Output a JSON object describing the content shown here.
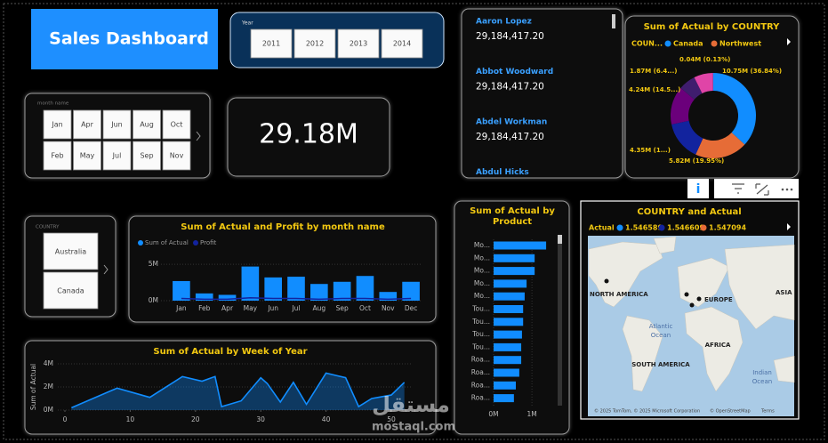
{
  "header": {
    "title": "Sales Dashboard"
  },
  "year_slicer": {
    "label": "Year",
    "options": [
      "2011",
      "2012",
      "2013",
      "2014"
    ]
  },
  "month_slicer": {
    "label": "month name",
    "options": [
      "Jan",
      "Apr",
      "Jun",
      "Aug",
      "Oct",
      "Feb",
      "May",
      "Jul",
      "Sep",
      "Nov"
    ]
  },
  "card": {
    "value": "29.18M"
  },
  "name_list": {
    "items": [
      {
        "name": "Aaron Lopez",
        "value": "29,184,417.20"
      },
      {
        "name": "Abbot Woodward",
        "value": "29,184,417.20"
      },
      {
        "name": "Abdel Workman",
        "value": "29,184,417.20"
      },
      {
        "name": "Abdul Hicks"
      }
    ]
  },
  "country_slicer": {
    "label": "COUNTRY",
    "options": [
      "Australia",
      "Canada"
    ]
  },
  "chart_data": [
    {
      "type": "pie",
      "title": "Sum of Actual by COUNTRY",
      "legend_title": "COUN...",
      "legend": [
        {
          "name": "Canada",
          "color": "#118dff"
        },
        {
          "name": "Northwest",
          "color": "#e66c37"
        }
      ],
      "values": [
        10.75,
        5.82,
        4.35,
        4.24,
        1.87,
        2.11,
        0.04
      ],
      "value_labels": [
        "10.75M (36.84%)",
        "5.82M (19.95%)",
        "4.35M (1...)",
        "4.24M (14.5...)",
        "1.87M (6.4...)",
        null,
        "0.04M (0.13%)"
      ],
      "colors": [
        "#118dff",
        "#e66c37",
        "#12239e",
        "#6b007b",
        "#3f1d6e",
        "#e044a7",
        "#744ec2"
      ]
    },
    {
      "type": "bar",
      "title": "Sum of Actual and Profit by month name",
      "categories": [
        "Jan",
        "Feb",
        "Apr",
        "May",
        "Jun",
        "Jul",
        "Aug",
        "Sep",
        "Oct",
        "Nov",
        "Dec"
      ],
      "series": [
        {
          "name": "Sum of Actual",
          "color": "#118dff",
          "values": [
            2.7,
            1.0,
            0.8,
            4.7,
            3.2,
            3.3,
            2.3,
            2.6,
            3.4,
            1.2,
            2.6
          ]
        },
        {
          "name": "Profit",
          "color": "#12239e",
          "kind": "line",
          "values": [
            0.3,
            0.2,
            0.2,
            0.4,
            0.3,
            0.3,
            0.2,
            0.3,
            0.3,
            0.2,
            0.3
          ]
        }
      ],
      "ylim": [
        0,
        6
      ],
      "yticks": [
        {
          "value": 0,
          "label": "0M"
        },
        {
          "value": 5,
          "label": "5M"
        }
      ]
    },
    {
      "type": "area",
      "title": "Sum of Actual by Week of Year",
      "y_label": "Sum of Actual",
      "color": "#118dff",
      "x": [
        1,
        8,
        13,
        18,
        21,
        23,
        24,
        27,
        30,
        31,
        33,
        35,
        37,
        40,
        43,
        45,
        47,
        50,
        52
      ],
      "values": [
        0.2,
        1.9,
        1.1,
        2.9,
        2.5,
        2.9,
        0.3,
        0.8,
        2.8,
        2.3,
        0.7,
        2.4,
        0.5,
        3.2,
        2.8,
        0.3,
        1.0,
        1.3,
        2.4
      ],
      "xlim": [
        0,
        53
      ],
      "xticks": [
        0,
        10,
        20,
        30,
        40,
        50
      ],
      "ylim": [
        0,
        4
      ],
      "yticks": [
        {
          "value": 0,
          "label": "0M"
        },
        {
          "value": 2,
          "label": "2M"
        },
        {
          "value": 4,
          "label": "4M"
        }
      ]
    },
    {
      "type": "hbar",
      "title": "Sum of Actual by Product",
      "color": "#118dff",
      "categories": [
        "Mo...",
        "Mo...",
        "Mo...",
        "Mo...",
        "Mo...",
        "Tou...",
        "Tou...",
        "Tou...",
        "Tou...",
        "Roa...",
        "Roa...",
        "Roa...",
        "Roa..."
      ],
      "values": [
        1.37,
        1.07,
        1.07,
        0.86,
        0.81,
        0.77,
        0.77,
        0.74,
        0.72,
        0.72,
        0.67,
        0.58,
        0.53
      ],
      "xlim": [
        0,
        1.6
      ],
      "xticks": [
        {
          "value": 0,
          "label": "0M"
        },
        {
          "value": 1,
          "label": "1M"
        }
      ]
    }
  ],
  "map": {
    "title": "COUNTRY and Actual",
    "legend_title": "Actual",
    "legend": [
      {
        "name": "1.546589",
        "color": "#118dff"
      },
      {
        "name": "1.546609",
        "color": "#12239e"
      },
      {
        "name": "1.547094",
        "color": "#e66c37"
      }
    ],
    "labels": [
      "NORTH AMERICA",
      "EUROPE",
      "ASIA",
      "Atlantic Ocean",
      "AFRICA",
      "SOUTH AMERICA",
      "Indian Ocean"
    ],
    "attribution": [
      "© 2025 TomTom, © 2025 Microsoft Corporation",
      "© OpenStreetMap",
      "Terms"
    ]
  },
  "watermark": {
    "arabic": "مستقل",
    "site": "mostaql.com"
  }
}
